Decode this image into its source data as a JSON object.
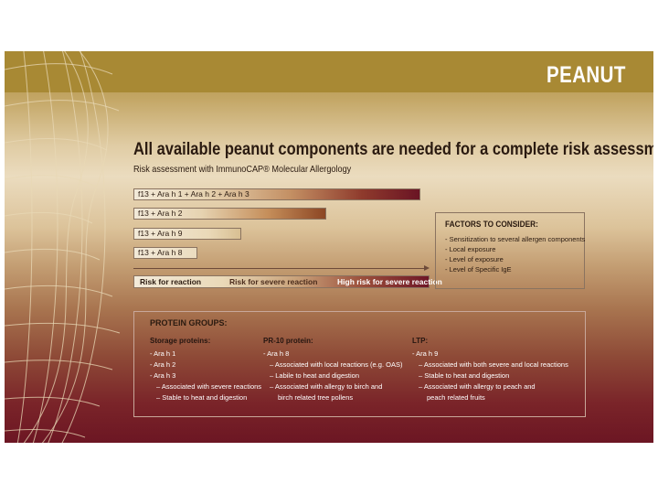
{
  "brand": "PEANUT",
  "headline": "All available peanut components are needed for a complete risk assessment",
  "subhead": "Risk assessment with ImmunoCAP® Molecular Allergology",
  "bars": [
    {
      "label": "f13 + Ara h 1 + Ara h 2 + Ara h 3"
    },
    {
      "label": "f13 + Ara h 2"
    },
    {
      "label": "f13 + Ara h 9"
    },
    {
      "label": "f13 + Ara h 8"
    }
  ],
  "risk_scale": {
    "low": "Risk for reaction",
    "mid": "Risk for severe reaction",
    "high": "High risk for severe reaction"
  },
  "factors": {
    "title": "FACTORS TO CONSIDER:",
    "items": [
      "- Sensitization to several allergen components",
      "- Local exposure",
      "- Level of exposure",
      "- Level of Specific IgE"
    ]
  },
  "protein_groups": {
    "title": "PROTEIN GROUPS:",
    "storage": {
      "title": "Storage proteins:",
      "items": [
        "- Ara h 1",
        "- Ara h 2",
        "- Ara h 3",
        "– Associated with severe reactions",
        "– Stable to heat and digestion"
      ]
    },
    "pr10": {
      "title": "PR-10 protein:",
      "items": [
        "- Ara h 8",
        "– Associated with local reactions (e.g. OAS)",
        "– Labile to heat and digestion",
        "– Associated with allergy to birch and",
        "birch related tree pollens"
      ]
    },
    "ltp": {
      "title": "LTP:",
      "items": [
        "- Ara h 9",
        "– Associated with both severe and local reactions",
        "– Stable to heat and digestion",
        "– Associated with allergy to peach and",
        "peach related fruits"
      ]
    }
  },
  "colors": {
    "band": "#a88934",
    "dark_red": "#6c1623",
    "cream": "#ebdcbf"
  }
}
